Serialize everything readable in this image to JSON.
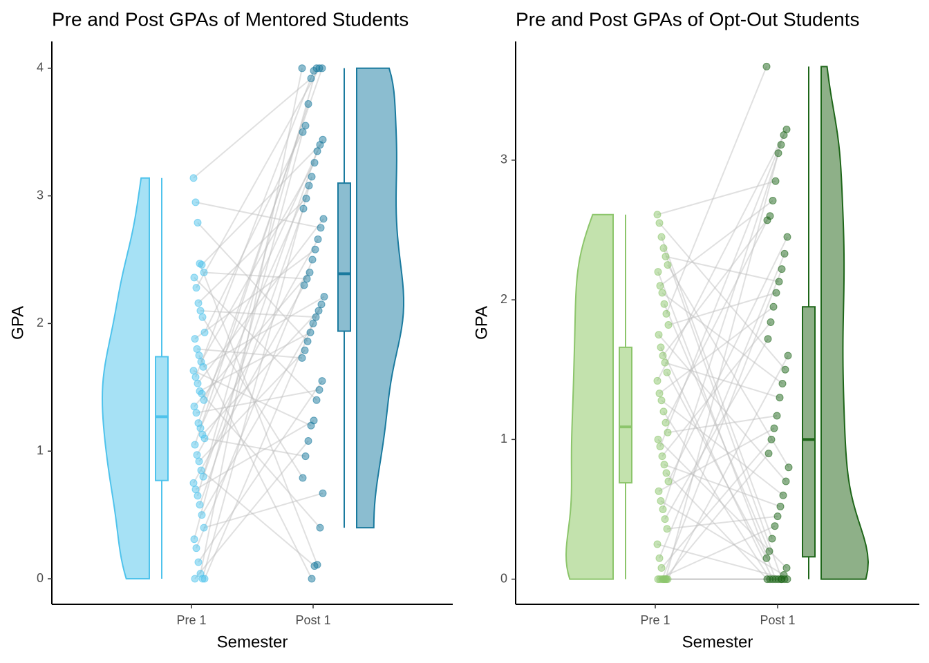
{
  "chart_data": [
    {
      "type": "raincloud",
      "title": "Pre and Post GPAs of Mentored Students",
      "x_label": "Semester",
      "y_label": "GPA",
      "categories": [
        "Pre 1",
        "Post 1"
      ],
      "ylim": [
        -0.2,
        4.21
      ],
      "yticks": [
        0,
        1,
        2,
        3,
        4
      ],
      "groups": [
        {
          "color": "#4fc3ec",
          "fill": "#a6e1f5",
          "box": [
            0,
            0.77,
            1.27,
            1.74,
            3.14
          ],
          "values": [
            3.14,
            2.95,
            2.79,
            2.47,
            2.46,
            2.4,
            2.36,
            2.28,
            2.16,
            2.1,
            2.05,
            1.93,
            1.88,
            1.8,
            1.75,
            1.7,
            1.66,
            1.63,
            1.58,
            1.53,
            1.47,
            1.45,
            1.4,
            1.35,
            1.3,
            1.22,
            1.18,
            1.13,
            1.1,
            1.05,
            0.97,
            0.92,
            0.85,
            0.8,
            0.75,
            0.7,
            0.65,
            0.58,
            0.5,
            0.4,
            0.31,
            0.24,
            0.13,
            0.04,
            0,
            0,
            0
          ]
        },
        {
          "color": "#1a7a9e",
          "fill": "#8bbdd0",
          "box": [
            0.4,
            1.94,
            2.39,
            3.1,
            4.0
          ],
          "values": [
            4,
            4,
            4,
            4,
            3.98,
            3.92,
            3.72,
            3.55,
            3.5,
            3.44,
            3.4,
            3.35,
            3.26,
            3.15,
            3.08,
            2.98,
            2.9,
            2.82,
            2.75,
            2.66,
            2.58,
            2.5,
            2.4,
            2.35,
            2.3,
            2.21,
            2.15,
            2.1,
            2.05,
            2.0,
            1.93,
            1.86,
            1.79,
            1.73,
            1.55,
            1.48,
            1.4,
            1.24,
            1.2,
            1.08,
            0.96,
            0.79,
            0.67,
            0.4,
            0.11,
            0.1,
            0
          ]
        }
      ]
    },
    {
      "type": "raincloud",
      "title": "Pre and Post GPAs of Opt-Out Students",
      "x_label": "Semester",
      "y_label": "GPA",
      "categories": [
        "Pre 1",
        "Post 1"
      ],
      "ylim": [
        -0.18,
        3.85
      ],
      "yticks": [
        0,
        1,
        2,
        3
      ],
      "groups": [
        {
          "color": "#8cc56b",
          "fill": "#c3e2ad",
          "box": [
            0,
            0.69,
            1.09,
            1.66,
            2.61
          ],
          "values": [
            2.61,
            2.55,
            2.45,
            2.37,
            2.31,
            2.25,
            2.2,
            2.1,
            2.05,
            1.97,
            1.9,
            1.82,
            1.75,
            1.66,
            1.6,
            1.55,
            1.48,
            1.42,
            1.33,
            1.28,
            1.2,
            1.12,
            1.05,
            1.0,
            0.95,
            0.88,
            0.82,
            0.76,
            0.7,
            0.63,
            0.56,
            0.5,
            0.43,
            0.36,
            0.25,
            0.15,
            0.08,
            0,
            0,
            0,
            0,
            0,
            0,
            0,
            0
          ]
        },
        {
          "color": "#1e6619",
          "fill": "#8eb088",
          "box": [
            0,
            0.16,
            1.0,
            1.95,
            3.67
          ],
          "values": [
            3.67,
            3.22,
            3.18,
            3.11,
            3.05,
            2.85,
            2.71,
            2.6,
            2.57,
            2.45,
            2.33,
            2.22,
            2.13,
            2.05,
            1.95,
            1.84,
            1.72,
            1.6,
            1.5,
            1.4,
            1.3,
            1.17,
            1.08,
            1.0,
            0.9,
            0.8,
            0.7,
            0.6,
            0.52,
            0.45,
            0.38,
            0.29,
            0.2,
            0.15,
            0.08,
            0.03,
            0,
            0,
            0,
            0,
            0,
            0,
            0,
            0,
            0
          ]
        }
      ]
    }
  ]
}
